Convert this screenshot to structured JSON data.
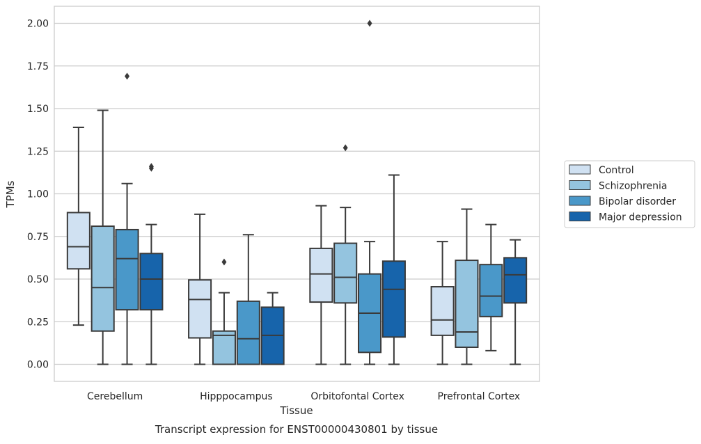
{
  "caption": "Transcript expression for ENST00000430801 by tissue",
  "chart_data": {
    "type": "box",
    "title": "",
    "xlabel": "Tissue",
    "ylabel": "TPMs",
    "ylim": [
      -0.1,
      2.1
    ],
    "yticks": [
      0.0,
      0.25,
      0.5,
      0.75,
      1.0,
      1.25,
      1.5,
      1.75,
      2.0
    ],
    "ytick_labels": [
      "0.00",
      "0.25",
      "0.50",
      "0.75",
      "1.00",
      "1.25",
      "1.50",
      "1.75",
      "2.00"
    ],
    "grid": "horizontal",
    "legend_position": "right",
    "categories": [
      "Cerebellum",
      "Hipppocampus",
      "Orbitofontal Cortex",
      "Prefrontal Cortex"
    ],
    "series": [
      {
        "name": "Control",
        "color": "#d0e1f2",
        "boxes": [
          {
            "whisker_low": 0.23,
            "q1": 0.56,
            "median": 0.69,
            "q3": 0.89,
            "whisker_high": 1.39,
            "outliers": []
          },
          {
            "whisker_low": 0.0,
            "q1": 0.155,
            "median": 0.38,
            "q3": 0.495,
            "whisker_high": 0.88,
            "outliers": []
          },
          {
            "whisker_low": 0.0,
            "q1": 0.365,
            "median": 0.53,
            "q3": 0.68,
            "whisker_high": 0.93,
            "outliers": []
          },
          {
            "whisker_low": 0.0,
            "q1": 0.17,
            "median": 0.26,
            "q3": 0.455,
            "whisker_high": 0.72,
            "outliers": []
          }
        ]
      },
      {
        "name": "Schizophrenia",
        "color": "#94c4df",
        "boxes": [
          {
            "whisker_low": 0.0,
            "q1": 0.195,
            "median": 0.45,
            "q3": 0.81,
            "whisker_high": 1.49,
            "outliers": []
          },
          {
            "whisker_low": 0.0,
            "q1": 0.0,
            "median": 0.17,
            "q3": 0.195,
            "whisker_high": 0.42,
            "outliers": [
              0.6
            ]
          },
          {
            "whisker_low": 0.0,
            "q1": 0.36,
            "median": 0.51,
            "q3": 0.71,
            "whisker_high": 0.92,
            "outliers": [
              1.27
            ]
          },
          {
            "whisker_low": 0.0,
            "q1": 0.1,
            "median": 0.19,
            "q3": 0.61,
            "whisker_high": 0.91,
            "outliers": []
          }
        ]
      },
      {
        "name": "Bipolar disorder",
        "color": "#4a98c9",
        "boxes": [
          {
            "whisker_low": 0.0,
            "q1": 0.32,
            "median": 0.62,
            "q3": 0.79,
            "whisker_high": 1.06,
            "outliers": [
              1.69
            ]
          },
          {
            "whisker_low": 0.0,
            "q1": 0.0,
            "median": 0.15,
            "q3": 0.37,
            "whisker_high": 0.76,
            "outliers": []
          },
          {
            "whisker_low": 0.0,
            "q1": 0.07,
            "median": 0.3,
            "q3": 0.53,
            "whisker_high": 0.72,
            "outliers": [
              2.0
            ]
          },
          {
            "whisker_low": 0.08,
            "q1": 0.28,
            "median": 0.4,
            "q3": 0.585,
            "whisker_high": 0.82,
            "outliers": []
          }
        ]
      },
      {
        "name": "Major depression",
        "color": "#1764ab",
        "boxes": [
          {
            "whisker_low": 0.0,
            "q1": 0.32,
            "median": 0.5,
            "q3": 0.65,
            "whisker_high": 0.82,
            "outliers": [
              1.15,
              1.16
            ]
          },
          {
            "whisker_low": 0.0,
            "q1": 0.0,
            "median": 0.17,
            "q3": 0.335,
            "whisker_high": 0.42,
            "outliers": []
          },
          {
            "whisker_low": 0.0,
            "q1": 0.16,
            "median": 0.44,
            "q3": 0.605,
            "whisker_high": 1.11,
            "outliers": []
          },
          {
            "whisker_low": 0.0,
            "q1": 0.36,
            "median": 0.525,
            "q3": 0.625,
            "whisker_high": 0.73,
            "outliers": []
          }
        ]
      }
    ]
  }
}
